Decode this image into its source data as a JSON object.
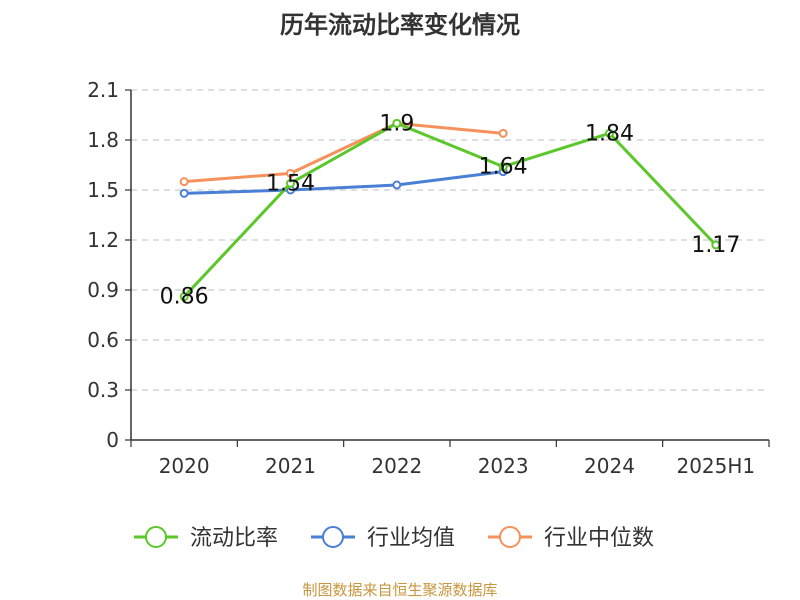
{
  "chart_data": {
    "type": "line",
    "title": "历年流动比率变化情况",
    "categories": [
      "2020",
      "2021",
      "2022",
      "2023",
      "2024",
      "2025H1"
    ],
    "yticks": [
      "0",
      "0.3",
      "0.6",
      "0.9",
      "1.2",
      "1.5",
      "1.8",
      "2.1"
    ],
    "ylim": [
      0,
      2.1
    ],
    "grid": true,
    "legend_position": "bottom",
    "series": [
      {
        "name": "流动比率",
        "color": "#5cc72a",
        "values": [
          0.86,
          1.54,
          1.9,
          1.64,
          1.84,
          1.17
        ],
        "labels": [
          "0.86",
          "1.54",
          "1.9",
          "1.64",
          "1.84",
          "1.17"
        ]
      },
      {
        "name": "行业均值",
        "color": "#4a7fd6",
        "values": [
          1.48,
          1.5,
          1.53,
          1.61,
          null,
          null
        ]
      },
      {
        "name": "行业中位数",
        "color": "#f5915a",
        "values": [
          1.55,
          1.6,
          1.9,
          1.84,
          null,
          null
        ]
      }
    ]
  },
  "source_note": "制图数据来自恒生聚源数据库"
}
